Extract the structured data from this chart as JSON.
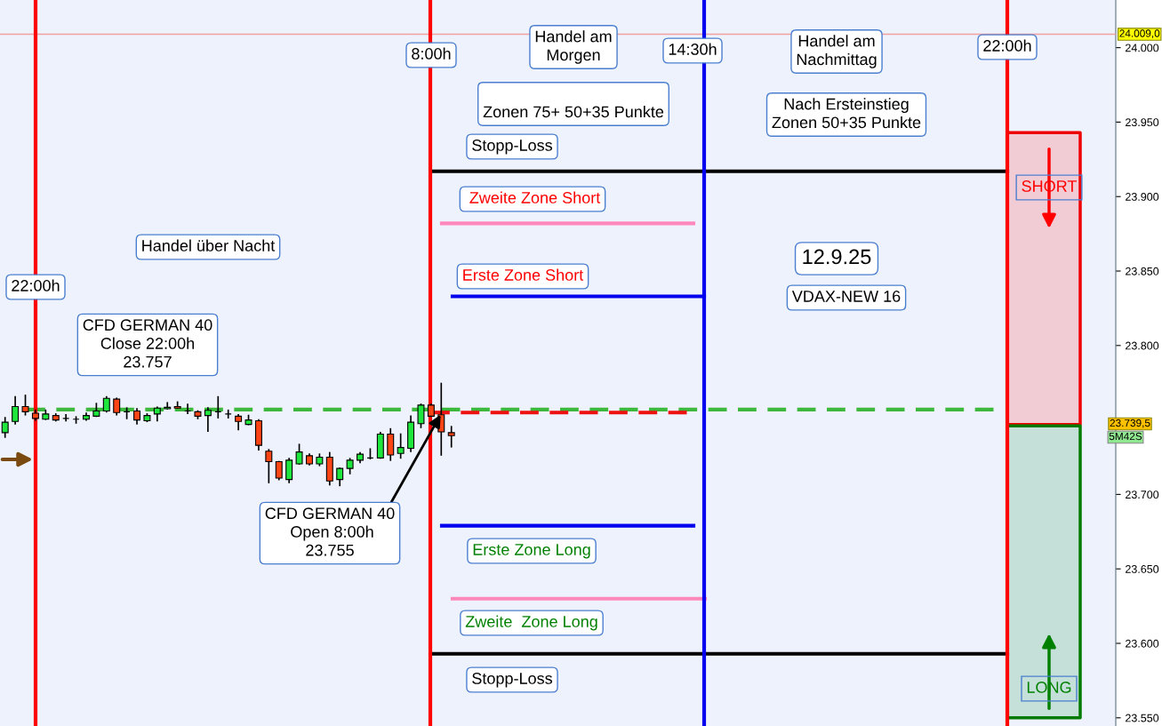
{
  "chart_data": {
    "type": "candlestick",
    "categories": [
      null,
      null,
      null,
      null,
      null,
      null,
      null,
      null,
      null,
      null,
      null,
      null,
      null,
      null,
      null,
      null,
      null,
      null,
      null,
      null,
      null,
      null,
      null,
      null,
      null,
      null,
      null,
      null,
      null,
      null,
      null,
      null,
      null,
      null,
      null,
      null,
      null,
      null,
      null,
      null,
      null,
      null,
      null,
      null,
      null,
      null,
      null,
      null,
      null,
      null,
      null,
      null,
      null,
      null,
      null,
      null,
      null,
      null,
      null,
      null,
      null,
      null,
      null,
      null,
      null,
      null,
      null,
      null,
      null,
      null,
      null,
      null,
      null,
      null,
      null,
      null,
      null,
      null,
      null,
      null,
      null,
      null,
      null,
      null,
      null,
      null,
      null,
      null,
      null,
      null,
      null,
      null,
      null,
      null,
      null,
      null,
      null,
      null,
      null,
      null,
      null,
      null,
      null,
      null,
      null,
      null,
      null,
      null,
      null,
      null
    ],
    "ohlc": [
      [
        23741.5,
        23751.5,
        23738.5,
        23748.5
      ],
      [
        23749,
        23765.5,
        23747.5,
        23759
      ],
      [
        23759,
        23766.5,
        23753.5,
        23755.5
      ],
      [
        23754.5,
        23756.5,
        23750,
        23751
      ],
      [
        23750.5,
        23756.5,
        23750.5,
        23754
      ],
      [
        23753,
        23754,
        23749.5,
        23750
      ],
      [
        23751,
        23753.5,
        23749.5,
        23751
      ],
      [
        23750.5,
        23752,
        23748,
        23750.5
      ],
      [
        23750.5,
        23754.5,
        23750,
        23753
      ],
      [
        23752.5,
        23761,
        23752.5,
        23756
      ],
      [
        23756,
        23765.5,
        23755.5,
        23764.5
      ],
      [
        23764,
        23764.5,
        23753.5,
        23755
      ],
      [
        23755.5,
        23758,
        23751,
        23755.5
      ],
      [
        23756,
        23757.5,
        23747.5,
        23750
      ],
      [
        23749.5,
        23754,
        23749,
        23753
      ],
      [
        23754,
        23758.5,
        23749.5,
        23758
      ],
      [
        23757.5,
        23761.5,
        23757.5,
        23758.5
      ],
      [
        23759,
        23762,
        23758,
        23758
      ],
      [
        23756,
        23760.5,
        23754.5,
        23756
      ],
      [
        23755.5,
        23756,
        23751,
        23752.5
      ],
      [
        23753,
        23758,
        23742.5,
        23756.5
      ],
      [
        23755.5,
        23765.5,
        23751.5,
        23755.5
      ],
      [
        23754,
        23756.5,
        23751.5,
        23754
      ],
      [
        23752.5,
        23753.5,
        23743.5,
        23749
      ],
      [
        23747,
        23753,
        23747,
        23750
      ],
      [
        23749.5,
        23750,
        23730,
        23733
      ],
      [
        23729,
        23730,
        23708,
        23722
      ],
      [
        23722,
        23722,
        23710,
        23711
      ],
      [
        23710,
        23724,
        23708,
        23723
      ],
      [
        23720.5,
        23733.5,
        23720.5,
        23728.5
      ],
      [
        23726,
        23727,
        23720,
        23720.5
      ],
      [
        23720.5,
        23727,
        23719.5,
        23725
      ],
      [
        23725,
        23728,
        23706.5,
        23709
      ],
      [
        23710,
        23717.5,
        23706,
        23717.5
      ],
      [
        23717.5,
        23724,
        23714,
        23723
      ],
      [
        23723,
        23728,
        23721.5,
        23727
      ],
      [
        23724.5,
        23730.5,
        23724,
        23724.5
      ],
      [
        23724.5,
        23741.5,
        23724.5,
        23740.5
      ],
      [
        23740.5,
        23744,
        23723,
        23726.5
      ],
      [
        23727.5,
        23740.5,
        23724.5,
        23731.5
      ],
      [
        23731,
        23752.5,
        23729,
        23748.5
      ],
      [
        23747.5,
        23760.5,
        23745,
        23760
      ],
      [
        23760,
        23760.5,
        23752.5,
        23752.5
      ],
      [
        23753.5,
        23774.5,
        23726.5,
        23742
      ],
      [
        23741.5,
        23745.5,
        23732,
        23739.5
      ],
      null,
      null,
      null,
      null,
      null,
      null,
      null,
      null,
      null,
      null,
      null,
      null,
      null,
      null,
      null,
      null,
      null,
      null,
      null,
      null,
      null,
      null,
      null,
      null,
      null,
      null,
      null,
      null,
      null,
      null,
      null,
      null,
      null,
      null,
      null,
      null,
      null,
      null,
      null,
      null,
      null,
      null,
      null,
      null,
      null,
      null,
      null,
      null,
      null,
      null,
      null,
      null,
      null,
      null,
      null,
      null,
      null,
      null,
      null,
      null,
      null,
      null,
      null,
      null,
      null
    ],
    "colors": [
      "#1ee63c",
      "#1ee63c",
      "#ff4516",
      "#ff4516",
      "#1ee63c",
      "#ff4516",
      "#000000",
      "#000000",
      "#1ee63c",
      "#1ee63c",
      "#1ee63c",
      "#ff4516",
      "#000000",
      "#ff4516",
      "#1ee63c",
      "#1ee63c",
      "#1ee63c",
      "#ff4516",
      "#000000",
      "#ff4516",
      "#1ee63c",
      "#000000",
      "#000000",
      "#ff4516",
      "#1ee63c",
      "#ff4516",
      "#ff4516",
      "#ff4516",
      "#1ee63c",
      "#1ee63c",
      "#ff4516",
      "#1ee63c",
      "#ff4516",
      "#1ee63c",
      "#1ee63c",
      "#1ee63c",
      "#000000",
      "#1ee63c",
      "#ff4516",
      "#1ee63c",
      "#1ee63c",
      "#1ee63c",
      "#ff4516",
      "#ff4516",
      "#ff4516",
      null,
      null,
      null,
      null,
      null,
      null,
      null,
      null,
      null,
      null,
      null,
      null,
      null,
      null,
      null,
      null,
      null,
      null,
      null,
      null,
      null,
      null,
      null,
      null,
      null,
      null,
      null,
      null,
      null,
      null,
      null,
      null,
      null,
      null,
      null,
      null,
      null,
      null,
      null,
      null,
      null,
      null,
      null,
      null,
      null,
      null,
      null,
      null,
      null,
      null,
      null,
      null,
      null,
      null,
      null,
      null,
      null,
      null,
      null,
      null,
      null,
      null,
      null,
      null,
      null
    ],
    "ref_lines": [
      {
        "axis": "y",
        "value": 23917,
        "label": "Stopp-Loss",
        "color": "#000000",
        "line_style": "solid"
      },
      {
        "axis": "y",
        "value": 23882,
        "label": " Zweite Zone Short",
        "color": "#ff88bb",
        "line_style": "solid"
      },
      {
        "axis": "y",
        "value": 23833,
        "label": "Erste Zone Short",
        "color": "#0000ee",
        "line_style": "solid"
      },
      {
        "axis": "y",
        "value": 23757,
        "label": "CFD GERMAN 40\nClose 22:00h\n23.757",
        "color": "#3cb83c",
        "line_style": "dashed"
      },
      {
        "axis": "y",
        "value": 23755,
        "label": "CFD GERMAN 40\n Open 8:00h\n23.755",
        "color": "#ee1111",
        "line_style": "dashed"
      },
      {
        "axis": "y",
        "value": 23679,
        "label": "Erste Zone Long",
        "color": "#0000ee",
        "line_style": "solid"
      },
      {
        "axis": "y",
        "value": 23630,
        "label": "Zweite  Zone Long",
        "color": "#ff88bb",
        "line_style": "solid"
      },
      {
        "axis": "y",
        "value": 23593,
        "label": "Stopp-Loss",
        "color": "#000000",
        "line_style": "solid"
      },
      {
        "axis": "y",
        "value": 24009,
        "label": "24.009,0",
        "color": "#f0a0a0",
        "line_style": "solid"
      }
    ],
    "bands": [
      {
        "axis": "y",
        "from": 23747,
        "to": 23943,
        "label": "SHORT",
        "color": "#f2ccd4"
      },
      {
        "axis": "y",
        "from": 23550,
        "to": 23746,
        "label": "LONG",
        "color": "#c4e0d8"
      }
    ],
    "annotations": [
      "22:00h",
      "8:00h",
      "14:30h",
      "22:00h",
      "Handel über Nacht",
      "Handel am\nMorgen",
      "\nZonen 75+ 50+35 Punkte",
      "Handel am\nNachmittag",
      "Nach Ersteinstieg\nZonen 50+35 Punkte",
      "12.9.25",
      "VDAX-NEW 16",
      "23.739,5",
      "5M42S"
    ],
    "ylim": [
      23544.5,
      24032
    ],
    "yticks": [
      {
        "value": 23550,
        "label": "23.550"
      },
      {
        "value": 23600,
        "label": "23.600"
      },
      {
        "value": 23650,
        "label": "23.650"
      },
      {
        "value": 23700,
        "label": "23.700"
      },
      {
        "value": 23750,
        "label": null
      },
      {
        "value": 23800,
        "label": "23.800"
      },
      {
        "value": 23850,
        "label": "23.850"
      },
      {
        "value": 23900,
        "label": "23.900"
      },
      {
        "value": 23950,
        "label": "23.950"
      },
      {
        "value": 24000,
        "label": "24.000"
      }
    ],
    "tick_labels": "y",
    "grid": false,
    "legend": false
  }
}
